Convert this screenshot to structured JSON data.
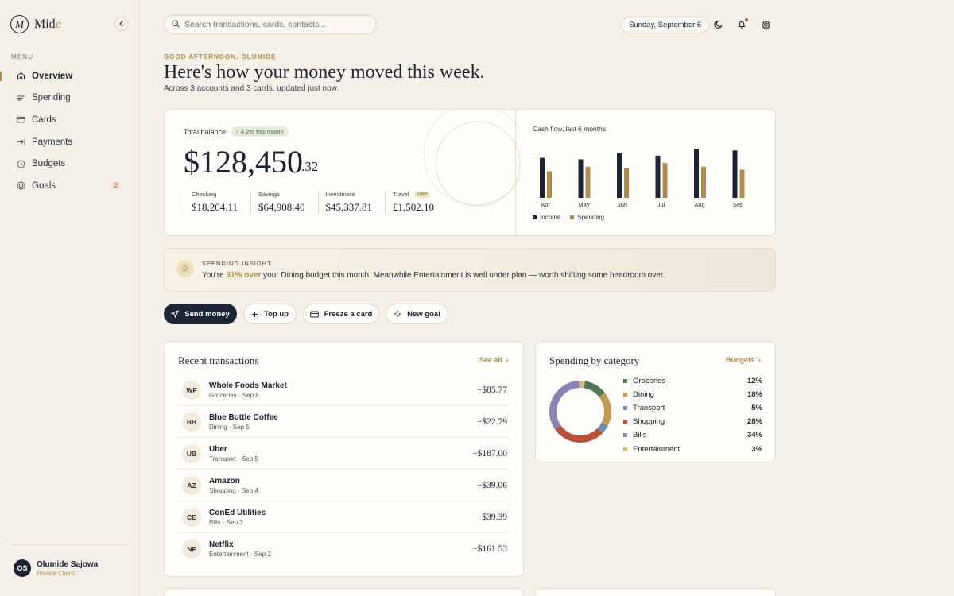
{
  "brand": {
    "mark": "M",
    "name_main": "Mid",
    "name_accent": "e"
  },
  "sidebar": {
    "menu_label": "MENU",
    "items": [
      {
        "label": "Overview",
        "icon": "home-icon",
        "active": true
      },
      {
        "label": "Spending",
        "icon": "list-icon"
      },
      {
        "label": "Cards",
        "icon": "card-icon"
      },
      {
        "label": "Payments",
        "icon": "arrow-in-icon"
      },
      {
        "label": "Budgets",
        "icon": "clock-icon"
      },
      {
        "label": "Goals",
        "icon": "target-icon",
        "badge": "2"
      }
    ],
    "user": {
      "initials": "OS",
      "name": "Olumide Sajowa",
      "role": "Private Client"
    }
  },
  "topbar": {
    "search_placeholder": "Search transactions, cards, contacts...",
    "date": "Sunday, September 6"
  },
  "header": {
    "greeting": "GOOD AFTERNOON, OLUMIDE",
    "headline": "Here's how your money moved this week.",
    "subhead": "Across 3 accounts and 3 cards, updated just now."
  },
  "balance": {
    "label": "Total balance",
    "change": "↑ 4.2% this month",
    "amount": "$128,450",
    "cents": ".32",
    "accounts": [
      {
        "label": "Checking",
        "value": "$18,204.11"
      },
      {
        "label": "Savings",
        "value": "$64,908.40"
      },
      {
        "label": "Investment",
        "value": "$45,337.81"
      },
      {
        "label": "Travel",
        "tag": "GBP",
        "value": "£1,502.10"
      }
    ]
  },
  "chart_data": {
    "type": "bar",
    "title": "Cash flow, last 6 months",
    "categories": [
      "Apr",
      "May",
      "Jun",
      "Jul",
      "Aug",
      "Sep"
    ],
    "series": [
      {
        "name": "Income",
        "color": "#1c2536",
        "values": [
          54,
          52,
          61,
          57,
          66,
          64
        ]
      },
      {
        "name": "Spending",
        "color": "#b38a4a",
        "values": [
          36,
          42,
          40,
          47,
          42,
          38
        ]
      }
    ],
    "ylim": [
      0,
      75
    ]
  },
  "insight": {
    "label": "SPENDING INSIGHT",
    "text_before": "You're ",
    "highlight": "31% over",
    "text_after": " your Dining budget this month. Meanwhile Entertainment is well under plan — worth shifting some headroom over."
  },
  "actions": [
    {
      "label": "Send money",
      "icon": "send-icon",
      "primary": true
    },
    {
      "label": "Top up",
      "icon": "plus-icon"
    },
    {
      "label": "Freeze a card",
      "icon": "card-icon"
    },
    {
      "label": "New goal",
      "icon": "sparkle-icon"
    }
  ],
  "transactions": {
    "title": "Recent transactions",
    "link": "See all",
    "rows": [
      {
        "initials": "WF",
        "name": "Whole Foods Market",
        "meta": "Groceries · Sep 6",
        "amount": "−$85.77"
      },
      {
        "initials": "BB",
        "name": "Blue Bottle Coffee",
        "meta": "Dining · Sep 5",
        "amount": "−$22.79"
      },
      {
        "initials": "UB",
        "name": "Uber",
        "meta": "Transport · Sep 5",
        "amount": "−$187.00"
      },
      {
        "initials": "AZ",
        "name": "Amazon",
        "meta": "Shopping · Sep 4",
        "amount": "−$39.06"
      },
      {
        "initials": "CE",
        "name": "ConEd Utilities",
        "meta": "Bills · Sep 3",
        "amount": "−$39.39"
      },
      {
        "initials": "NF",
        "name": "Netflix",
        "meta": "Entertainment · Sep 2",
        "amount": "−$161.53"
      }
    ]
  },
  "categories": {
    "title": "Spending by category",
    "link": "Budgets",
    "items": [
      {
        "name": "Groceries",
        "pct": "12%",
        "value": 12,
        "color": "#4f7a55"
      },
      {
        "name": "Dining",
        "pct": "18%",
        "value": 18,
        "color": "#c39a4f"
      },
      {
        "name": "Transport",
        "pct": "5%",
        "value": 5,
        "color": "#6f8fa8"
      },
      {
        "name": "Shopping",
        "pct": "28%",
        "value": 28,
        "color": "#b9503a"
      },
      {
        "name": "Bills",
        "pct": "34%",
        "value": 34,
        "color": "#8a83b5"
      },
      {
        "name": "Entertainment",
        "pct": "3%",
        "value": 3,
        "color": "#d9b878"
      }
    ]
  }
}
